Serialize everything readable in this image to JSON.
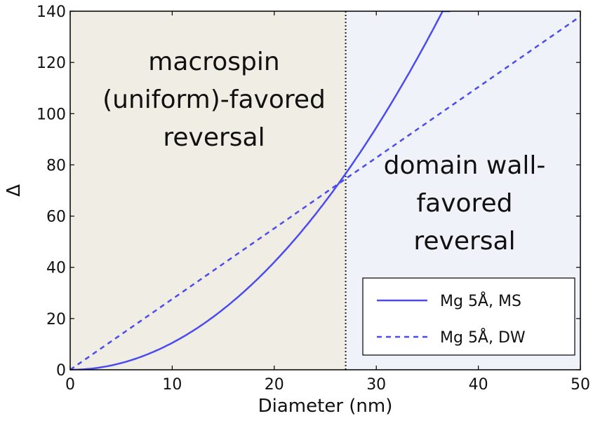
{
  "chart_data": {
    "type": "line",
    "title": "",
    "xlabel": "Diameter (nm)",
    "ylabel": "Δ",
    "xlim": [
      0,
      50
    ],
    "ylim": [
      0,
      140
    ],
    "xticks": [
      0,
      10,
      20,
      30,
      40,
      50
    ],
    "yticks": [
      0,
      20,
      40,
      60,
      80,
      100,
      120,
      140
    ],
    "grid": false,
    "legend_position": "bottom-right",
    "crossover_x": 27,
    "regions": [
      {
        "x_range": [
          0,
          27
        ],
        "color": "#efede4",
        "label_lines": [
          "macrospin",
          "(uniform)-favored",
          "reversal"
        ]
      },
      {
        "x_range": [
          27,
          50
        ],
        "color": "#eff3f9",
        "label_lines": [
          "domain wall-",
          "favored",
          "reversal"
        ]
      }
    ],
    "series": [
      {
        "name": "Mg 5Å, MS",
        "style": "solid",
        "color": "#4b4bf0",
        "x": [
          0,
          2.5,
          5,
          7.5,
          10,
          12.5,
          15,
          17.5,
          20,
          22.5,
          25,
          27,
          30,
          32.5,
          35,
          37.3
        ],
        "y": [
          0,
          0.7,
          2.6,
          5.9,
          10.5,
          16.4,
          23.6,
          32.2,
          42.0,
          53.2,
          65.7,
          76.6,
          94.6,
          111.0,
          128.7,
          140
        ]
      },
      {
        "name": "Mg 5Å, DW",
        "style": "dashed",
        "color": "#4b4bf0",
        "x": [
          0,
          10,
          20,
          27,
          30,
          40,
          50
        ],
        "y": [
          0,
          27.6,
          55.2,
          74.6,
          82.8,
          110.4,
          138
        ]
      }
    ]
  }
}
